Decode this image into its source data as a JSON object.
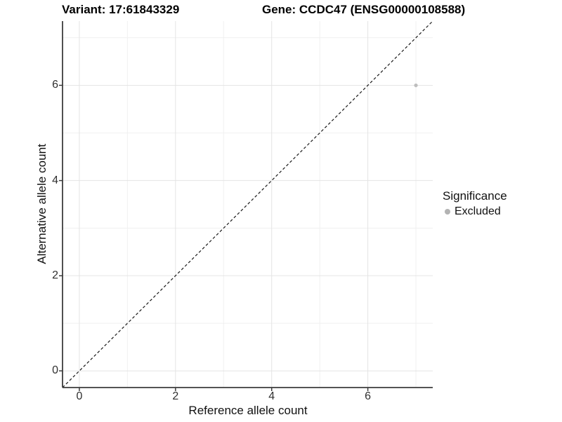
{
  "title": {
    "left": "Variant: 17:61843329",
    "right": "Gene: CCDC47 (ENSG00000108588)"
  },
  "axes": {
    "x": {
      "label": "Reference allele count"
    },
    "y": {
      "label": "Alternative allele count"
    }
  },
  "legend": {
    "title": "Significance",
    "items": [
      {
        "label": "Excluded",
        "color": "#b3b3b3"
      }
    ]
  },
  "colors": {
    "point": "#bdbdbd",
    "axis_line": "#3c3c3c",
    "grid_major": "#e4e4e4",
    "grid_minor": "#f0f0f0",
    "reference_line": "#1a1a1a",
    "background": "#ffffff"
  },
  "chart_data": {
    "type": "scatter",
    "title": "Variant: 17:61843329    Gene: CCDC47 (ENSG00000108588)",
    "xlabel": "Reference allele count",
    "ylabel": "Alternative allele count",
    "xlim": [
      -0.35,
      7.35
    ],
    "ylim": [
      -0.35,
      7.35
    ],
    "xticks": [
      0,
      2,
      4,
      6
    ],
    "yticks": [
      0,
      2,
      4,
      6
    ],
    "minor_xticks": [
      1,
      3,
      5,
      7
    ],
    "minor_yticks": [
      1,
      3,
      5,
      7
    ],
    "grid": true,
    "legend_position": "right",
    "series": [
      {
        "name": "Excluded",
        "color": "#bdbdbd",
        "points": [
          [
            7,
            6
          ]
        ]
      }
    ],
    "reference_line": {
      "kind": "identity-diagonal",
      "equation": "y = x",
      "style": "dashed",
      "color": "#1a1a1a"
    }
  }
}
